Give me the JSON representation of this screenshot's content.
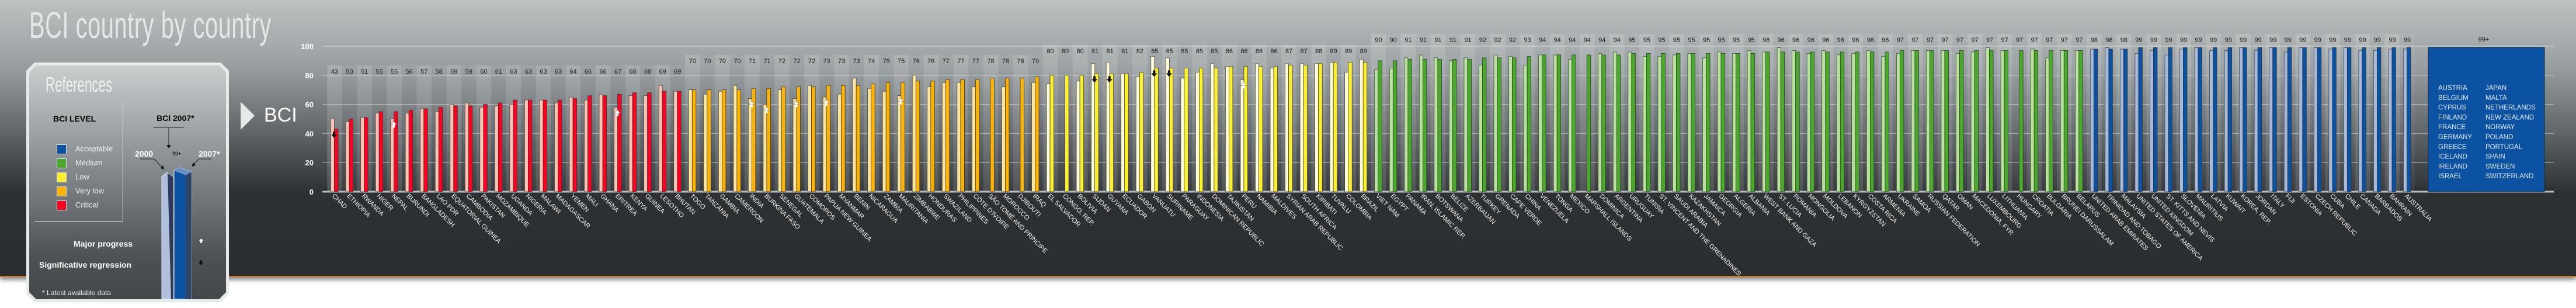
{
  "header": {
    "title": "BCI country by country",
    "chart_tag": "BCI"
  },
  "legend": {
    "title": "References",
    "level_title": "BCI LEVEL",
    "levels": [
      "Acceptable",
      "Medium",
      "Low",
      "Very low",
      "Critical"
    ],
    "bci_2007_label": "BCI 2007*",
    "year_2000": "2000",
    "sample_value": "99+",
    "year_2007": "2007*",
    "major_progress": "Major progress",
    "regression": "Significative regression",
    "note": "* Latest available data"
  },
  "chart_data": {
    "type": "bar",
    "title": "BCI country by country",
    "ylabel": "BCI",
    "ylim": [
      0,
      100
    ],
    "yticks": [
      "0",
      "20",
      "40",
      "60",
      "80",
      "100"
    ],
    "grid": true,
    "levels": [
      {
        "name": "Acceptable",
        "min": 98,
        "color": "#0b52a3",
        "light": "#a9b9dc"
      },
      {
        "name": "Medium",
        "min": 90,
        "color": "#4aa92a",
        "light": "#b9e39a"
      },
      {
        "name": "Low",
        "min": 80,
        "color": "#fff02e",
        "light": "#fffbd8"
      },
      {
        "name": "Very low",
        "min": 70,
        "color": "#ffb200",
        "light": "#ffe59b"
      },
      {
        "name": "Critical",
        "min": 0,
        "color": "#ff0020",
        "light": "#ffc3b2"
      }
    ],
    "series_names": [
      "2000",
      "2007*"
    ],
    "countries": [
      [
        "CHAD",
        43,
        50,
        "down"
      ],
      [
        "ETHIOPIA",
        50,
        48,
        ""
      ],
      [
        "RWANDA",
        51,
        51,
        ""
      ],
      [
        "NIGER",
        55,
        54,
        ""
      ],
      [
        "NEPAL",
        55,
        50,
        "up"
      ],
      [
        "BURUNDI",
        56,
        54,
        ""
      ],
      [
        "BANGLADESH",
        57,
        57,
        ""
      ],
      [
        "LAO PDR",
        58,
        55,
        ""
      ],
      [
        "EQUATORIAL GUINEA",
        59,
        60,
        ""
      ],
      [
        "CAMBODIA",
        59,
        61,
        ""
      ],
      [
        "PAKISTAN",
        60,
        58,
        ""
      ],
      [
        "MOZAMBIQUE",
        61,
        59,
        ""
      ],
      [
        "UGANDA",
        63,
        60,
        ""
      ],
      [
        "NIGERIA",
        63,
        63,
        ""
      ],
      [
        "MALAWI",
        63,
        63,
        ""
      ],
      [
        "MADAGASCAR",
        63,
        61,
        ""
      ],
      [
        "YEMEN",
        64,
        65,
        ""
      ],
      [
        "MALI",
        66,
        63,
        ""
      ],
      [
        "GHANA",
        66,
        67,
        ""
      ],
      [
        "ERITREA",
        67,
        58,
        "up"
      ],
      [
        "KENYA",
        68,
        66,
        ""
      ],
      [
        "GUINEA",
        68,
        66,
        ""
      ],
      [
        "LESOTHO",
        69,
        73,
        ""
      ],
      [
        "BHUTAN",
        69,
        69,
        ""
      ],
      [
        "TOGO",
        70,
        70,
        ""
      ],
      [
        "TANZANIA",
        70,
        67,
        ""
      ],
      [
        "GAMBIA",
        70,
        69,
        ""
      ],
      [
        "CAMEROON",
        70,
        73,
        ""
      ],
      [
        "INDIA",
        71,
        64,
        "up"
      ],
      [
        "BURKINA FASO",
        71,
        60,
        "up"
      ],
      [
        "SENEGAL",
        72,
        70,
        ""
      ],
      [
        "GUATEMALA",
        72,
        64,
        "up"
      ],
      [
        "COMOROS",
        72,
        73,
        ""
      ],
      [
        "PAPUA NEW GUINEA",
        73,
        65,
        "up"
      ],
      [
        "MYANMAR",
        73,
        67,
        ""
      ],
      [
        "BENIN",
        73,
        78,
        ""
      ],
      [
        "NICARAGUA",
        74,
        71,
        ""
      ],
      [
        "ZAMBIA",
        75,
        69,
        ""
      ],
      [
        "MAURITANIA",
        75,
        66,
        "up"
      ],
      [
        "ZIMBABWE",
        76,
        80,
        ""
      ],
      [
        "HONDURAS",
        76,
        72,
        ""
      ],
      [
        "SWAZILAND",
        77,
        75,
        ""
      ],
      [
        "PHILIPPINES",
        77,
        75,
        ""
      ],
      [
        "CÔTE D'IVOIRE",
        77,
        72,
        ""
      ],
      [
        "SÃO TOMÉ AND PRINCIPE",
        78,
        null,
        ""
      ],
      [
        "MOROCCO",
        78,
        72,
        ""
      ],
      [
        "DJIBOUTI",
        78,
        null,
        ""
      ],
      [
        "IRAQ",
        79,
        75,
        ""
      ],
      [
        "EL SALVADOR",
        80,
        74,
        ""
      ],
      [
        "CONGO, REP.",
        80,
        null,
        ""
      ],
      [
        "BOLIVIA",
        80,
        76,
        ""
      ],
      [
        "SUDAN",
        81,
        88,
        "down"
      ],
      [
        "GUYANA",
        81,
        89,
        "down"
      ],
      [
        "ECUADOR",
        81,
        81,
        ""
      ],
      [
        "GABON",
        82,
        79,
        ""
      ],
      [
        "VANUATU",
        85,
        93,
        "down"
      ],
      [
        "SURINAME",
        85,
        92,
        "down"
      ],
      [
        "PARAGUAY",
        85,
        78,
        ""
      ],
      [
        "INDONESIA",
        85,
        82,
        ""
      ],
      [
        "DOMINICAN REPUBLIC",
        85,
        88,
        ""
      ],
      [
        "TAJIKISTAN",
        86,
        86,
        ""
      ],
      [
        "PERU",
        86,
        77,
        "up"
      ],
      [
        "NAMIBIA",
        86,
        88,
        ""
      ],
      [
        "MALDIVES",
        86,
        85,
        ""
      ],
      [
        "SYRIAN ARAB REPUBLIC",
        87,
        88,
        ""
      ],
      [
        "SOUTH AFRICA",
        87,
        88,
        ""
      ],
      [
        "KIRIBATI",
        88,
        88,
        ""
      ],
      [
        "TUVALU",
        89,
        89,
        ""
      ],
      [
        "COLOMBIA",
        89,
        82,
        ""
      ],
      [
        "BRAZIL",
        89,
        91,
        ""
      ],
      [
        "VIET NAM",
        90,
        84,
        ""
      ],
      [
        "EGYPT",
        90,
        85,
        ""
      ],
      [
        "PANAMA",
        91,
        92,
        ""
      ],
      [
        "IRAN, ISLAMIC REP.",
        91,
        94,
        ""
      ],
      [
        "BOTSWANA",
        91,
        92,
        ""
      ],
      [
        "BELIZE",
        91,
        90,
        ""
      ],
      [
        "AZERBAIJAN",
        91,
        92,
        ""
      ],
      [
        "TURKEY",
        92,
        87,
        ""
      ],
      [
        "GRENADA",
        92,
        94,
        ""
      ],
      [
        "CAPE VERDE",
        92,
        93,
        ""
      ],
      [
        "CHINA",
        93,
        87,
        ""
      ],
      [
        "VENEZUELA",
        94,
        94,
        ""
      ],
      [
        "TONGA",
        94,
        94,
        ""
      ],
      [
        "MEXICO",
        94,
        91,
        ""
      ],
      [
        "MARSHALL ISLANDS",
        94,
        null,
        ""
      ],
      [
        "DOMINICA",
        94,
        95,
        ""
      ],
      [
        "ARGENTINA",
        94,
        96,
        ""
      ],
      [
        "URUGUAY",
        95,
        96,
        ""
      ],
      [
        "TUNISIA",
        95,
        93,
        ""
      ],
      [
        "ST. VINCENT AND THE GRENADINES",
        95,
        93,
        ""
      ],
      [
        "SAUDI ARABIA",
        95,
        94,
        ""
      ],
      [
        "KAZAKHSTAN",
        95,
        95,
        ""
      ],
      [
        "JAMAICA",
        95,
        92,
        ""
      ],
      [
        "GEORGIA",
        95,
        96,
        ""
      ],
      [
        "ALGERIA",
        95,
        95,
        ""
      ],
      [
        "ALBANIA",
        95,
        97,
        ""
      ],
      [
        "WEST BANK AND GAZA",
        96,
        96,
        ""
      ],
      [
        "ST. LUCIA",
        96,
        99,
        ""
      ],
      [
        "ROMANIA",
        96,
        97,
        ""
      ],
      [
        "MONGOLIA",
        96,
        95,
        ""
      ],
      [
        "MOLDOVA",
        96,
        97,
        ""
      ],
      [
        "LEBANON",
        96,
        94,
        ""
      ],
      [
        "KYRGYZSTAN",
        96,
        95,
        ""
      ],
      [
        "COSTA RICA",
        96,
        97,
        ""
      ],
      [
        "ARMENIA",
        96,
        93,
        ""
      ],
      [
        "UKRAINE",
        97,
        95,
        ""
      ],
      [
        "SAMOA",
        97,
        97,
        ""
      ],
      [
        "RUSSIAN FEDERATION",
        97,
        97,
        ""
      ],
      [
        "QATAR",
        97,
        97,
        ""
      ],
      [
        "OMAN",
        97,
        95,
        ""
      ],
      [
        "MACEDONIA, FYR",
        97,
        96,
        ""
      ],
      [
        "LUXEMBOURG",
        97,
        99,
        ""
      ],
      [
        "LITHUANIA",
        97,
        97,
        ""
      ],
      [
        "HUNGARY",
        97,
        null,
        ""
      ],
      [
        "CROATIA",
        97,
        98,
        ""
      ],
      [
        "BULGARIA",
        97,
        92,
        ""
      ],
      [
        "BRUNEI DARUSSALAM",
        97,
        97,
        ""
      ],
      [
        "BELARUS",
        97,
        97,
        ""
      ],
      [
        "UNITED ARAB EMIRATES",
        98,
        98,
        ""
      ],
      [
        "TRINIDAD AND TOBAGO",
        98,
        99,
        ""
      ],
      [
        "MALAYSIA",
        98,
        98,
        ""
      ],
      [
        "UNITED STATES OF AMERICA",
        99,
        95,
        ""
      ],
      [
        "UNITED KINGDOM",
        99,
        97,
        ""
      ],
      [
        "ST. KITTS AND NEVIS",
        99,
        94,
        ""
      ],
      [
        "SLOVENIA",
        99,
        98,
        ""
      ],
      [
        "MAURITIUS",
        99,
        99,
        ""
      ],
      [
        "LATVIA",
        99,
        97,
        ""
      ],
      [
        "KUWAIT",
        99,
        97,
        ""
      ],
      [
        "KOREA, REP.",
        99,
        99,
        ""
      ],
      [
        "JORDAN",
        99,
        97,
        ""
      ],
      [
        "ITALY",
        99,
        99,
        ""
      ],
      [
        "FIJI",
        99,
        96,
        ""
      ],
      [
        "ESTONIA",
        99,
        99,
        ""
      ],
      [
        "CZECH REPUBLIC",
        99,
        99,
        ""
      ],
      [
        "CUBA",
        99,
        98,
        ""
      ],
      [
        "CHILE",
        99,
        99,
        ""
      ],
      [
        "CANADA",
        99,
        97,
        ""
      ],
      [
        "BARBADOS",
        99,
        97,
        ""
      ],
      [
        "BAHRAIN",
        99,
        98,
        ""
      ],
      [
        "AUSTRALIA",
        99,
        98,
        ""
      ]
    ],
    "top_group": {
      "label": "99+",
      "countries": [
        "AUSTRIA",
        "BELGIUM",
        "CYPRUS",
        "FINLAND",
        "FRANCE",
        "GERMANY",
        "GREECE",
        "ICELAND",
        "IRELAND",
        "ISRAEL",
        "JAPAN",
        "MALTA",
        "NETHERLANDS",
        "NEW ZEALAND",
        "NORWAY",
        "POLAND",
        "PORTUGAL",
        "SPAIN",
        "SWEDEN",
        "SWITZERLAND"
      ]
    }
  }
}
